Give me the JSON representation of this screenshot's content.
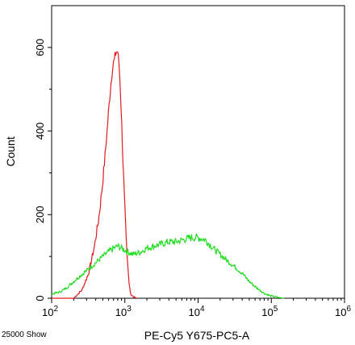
{
  "chart_data": {
    "type": "line",
    "title": "",
    "xlabel": "PE-Cy5 Y675-PC5-A",
    "ylabel": "Count",
    "x_scale": "log",
    "xlim": [
      100,
      1000000
    ],
    "ylim": [
      0,
      700
    ],
    "x_ticks": [
      {
        "value": 100,
        "base": "10",
        "exp": "2"
      },
      {
        "value": 1000,
        "base": "10",
        "exp": "3"
      },
      {
        "value": 10000,
        "base": "10",
        "exp": "4"
      },
      {
        "value": 100000,
        "base": "10",
        "exp": "5"
      },
      {
        "value": 1000000,
        "base": "10",
        "exp": "6"
      }
    ],
    "y_ticks": [
      {
        "value": 0,
        "label": "0"
      },
      {
        "value": 200,
        "label": "200"
      },
      {
        "value": 400,
        "label": "400"
      },
      {
        "value": 600,
        "label": "600"
      }
    ],
    "event_label": "25000 Show",
    "grid": false,
    "series": [
      {
        "color": "#e31a1c",
        "x": [
          100,
          200,
          260,
          320,
          380,
          440,
          500,
          560,
          620,
          680,
          720,
          760,
          800,
          840,
          880,
          920,
          980,
          1060,
          1140,
          1200,
          1300,
          1500
        ],
        "y": [
          0,
          0,
          20,
          60,
          120,
          190,
          280,
          380,
          480,
          555,
          570,
          590,
          590,
          550,
          480,
          380,
          250,
          110,
          40,
          10,
          3,
          0
        ]
      },
      {
        "color": "#22dd22",
        "x": [
          100,
          130,
          160,
          200,
          250,
          320,
          400,
          500,
          640,
          800,
          1000,
          1300,
          1600,
          2000,
          2500,
          3200,
          4000,
          5000,
          6300,
          8000,
          10000,
          12600,
          16000,
          20000,
          25000,
          32000,
          40000,
          50000,
          63000,
          80000,
          100000,
          126000,
          150000
        ],
        "y": [
          10,
          15,
          25,
          40,
          55,
          70,
          85,
          100,
          115,
          125,
          115,
          105,
          110,
          120,
          125,
          130,
          135,
          135,
          140,
          145,
          145,
          140,
          120,
          105,
          90,
          75,
          60,
          40,
          25,
          12,
          5,
          2,
          0
        ]
      }
    ]
  }
}
